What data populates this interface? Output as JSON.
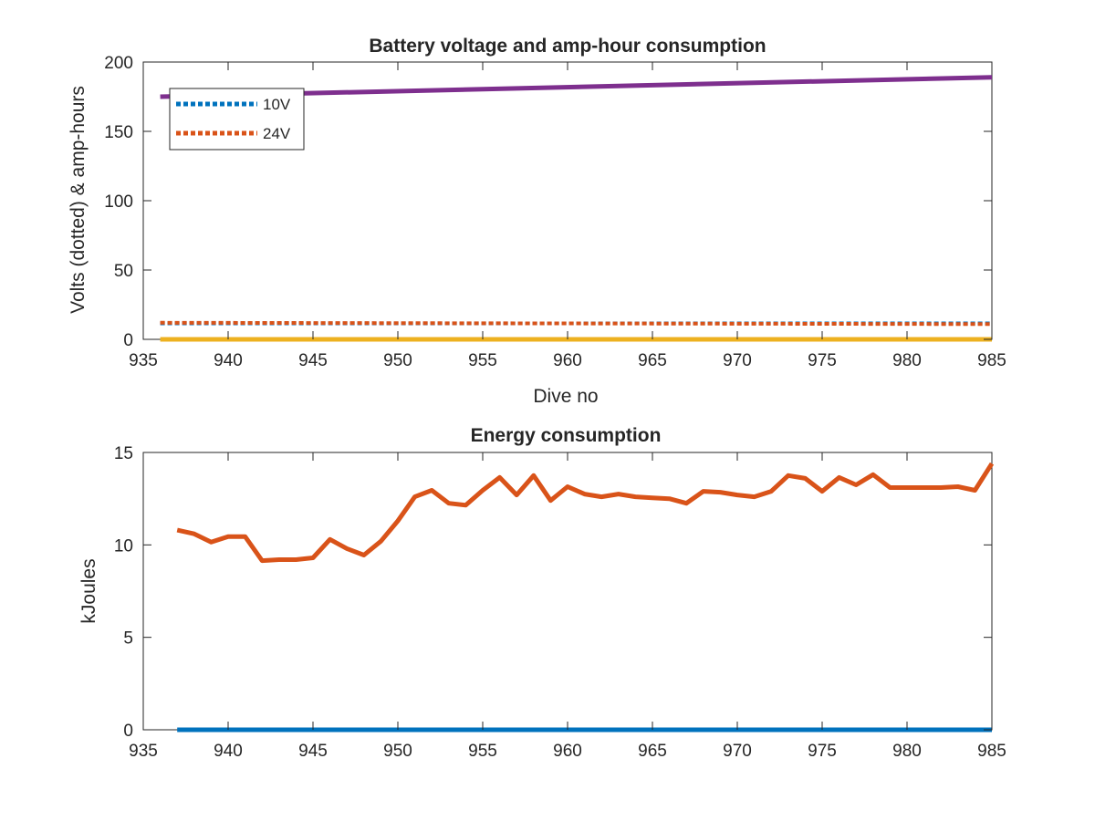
{
  "chart_data": [
    {
      "type": "line",
      "title": "Battery voltage and amp-hour consumption",
      "xlabel": "Dive no",
      "ylabel": "Volts (dotted) & amp-hours",
      "xlim": [
        935,
        985
      ],
      "ylim": [
        0,
        200
      ],
      "xticks": [
        "935",
        "940",
        "945",
        "950",
        "955",
        "960",
        "965",
        "970",
        "975",
        "980",
        "985"
      ],
      "yticks": [
        "0",
        "50",
        "100",
        "150",
        "200"
      ],
      "legend_position": "top-left",
      "series": [
        {
          "name": "10V",
          "color": "#0072BD",
          "style": "dotted",
          "x": [
            936,
            985
          ],
          "y": [
            11.5,
            11.5
          ]
        },
        {
          "name": "24V",
          "color": "#D95319",
          "style": "dotted",
          "x": [
            936,
            985
          ],
          "y": [
            12.0,
            11.0
          ]
        },
        {
          "color": "#7E2F8E",
          "style": "solid",
          "x": [
            936,
            985
          ],
          "y": [
            175,
            189
          ]
        },
        {
          "color": "#EDB120",
          "style": "solid",
          "x": [
            936,
            985
          ],
          "y": [
            0,
            0
          ]
        }
      ]
    },
    {
      "type": "line",
      "title": "Energy consumption",
      "xlabel": "",
      "ylabel": "kJoules",
      "xlim": [
        935,
        985
      ],
      "ylim": [
        0,
        15
      ],
      "xticks": [
        "935",
        "940",
        "945",
        "950",
        "955",
        "960",
        "965",
        "970",
        "975",
        "980",
        "985"
      ],
      "yticks": [
        "0",
        "5",
        "10",
        "15"
      ],
      "series": [
        {
          "color": "#D95319",
          "style": "solid",
          "x": [
            937,
            938,
            939,
            940,
            941,
            942,
            943,
            944,
            945,
            946,
            947,
            948,
            949,
            950,
            951,
            952,
            953,
            954,
            955,
            956,
            957,
            958,
            959,
            960,
            961,
            962,
            963,
            964,
            965,
            966,
            967,
            968,
            969,
            970,
            971,
            972,
            973,
            974,
            975,
            976,
            977,
            978,
            979,
            980,
            981,
            982,
            983,
            984,
            985
          ],
          "y": [
            10.8,
            10.6,
            10.15,
            10.45,
            10.45,
            9.15,
            9.2,
            9.2,
            9.3,
            10.3,
            9.8,
            9.45,
            10.2,
            11.3,
            12.6,
            12.95,
            12.25,
            12.15,
            12.95,
            13.65,
            12.7,
            13.75,
            12.4,
            13.15,
            12.75,
            12.6,
            12.75,
            12.6,
            12.55,
            12.5,
            12.25,
            12.9,
            12.85,
            12.7,
            12.6,
            12.9,
            13.75,
            13.6,
            12.9,
            13.65,
            13.25,
            13.8,
            13.1,
            13.1,
            13.1,
            13.1,
            13.15,
            12.95,
            14.4
          ]
        },
        {
          "color": "#0072BD",
          "style": "solid",
          "x": [
            937,
            985
          ],
          "y": [
            0,
            0
          ]
        }
      ]
    }
  ]
}
